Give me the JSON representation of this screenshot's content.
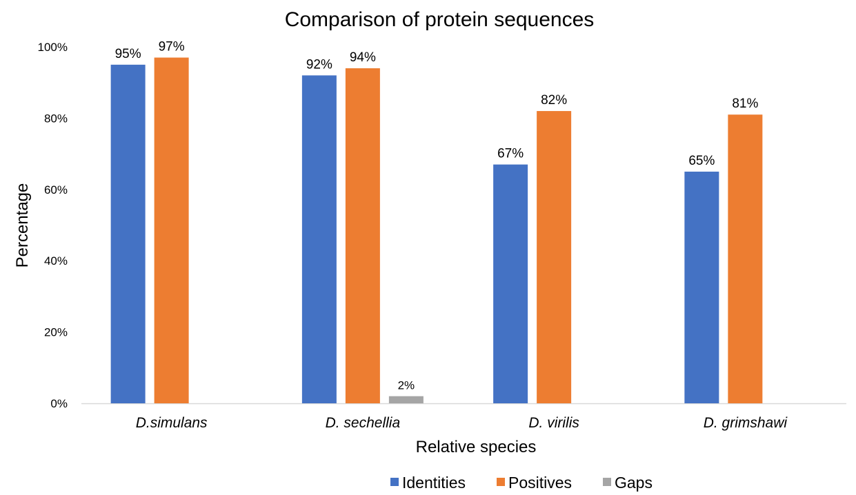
{
  "chart_data": {
    "type": "bar",
    "title": "Comparison of protein sequences",
    "xlabel": "Relative species",
    "ylabel": "Percentage",
    "ylim": [
      0,
      100
    ],
    "yticks": [
      "0%",
      "20%",
      "40%",
      "60%",
      "80%",
      "100%"
    ],
    "ytick_values": [
      0,
      20,
      40,
      60,
      80,
      100
    ],
    "grid": false,
    "legend_position": "bottom",
    "categories": [
      "D.simulans",
      "D. sechellia",
      "D. virilis",
      "D. grimshawi"
    ],
    "series": [
      {
        "name": "Identities",
        "color": "#4472C4",
        "values": [
          95,
          92,
          67,
          65
        ],
        "labels": [
          "95%",
          "92%",
          "67%",
          "65%"
        ]
      },
      {
        "name": "Positives",
        "color": "#ED7D31",
        "values": [
          97,
          94,
          82,
          81
        ],
        "labels": [
          "97%",
          "94%",
          "82%",
          "81%"
        ]
      },
      {
        "name": "Gaps",
        "color": "#A5A5A5",
        "values": [
          null,
          2,
          null,
          null
        ],
        "labels": [
          null,
          "2%",
          null,
          null
        ]
      }
    ]
  }
}
